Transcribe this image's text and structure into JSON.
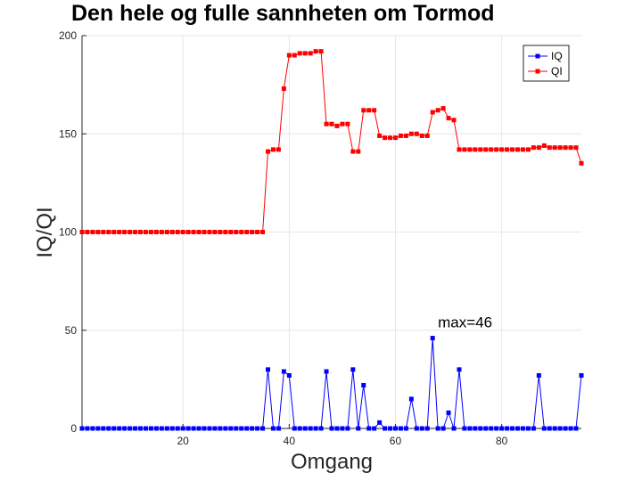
{
  "chart_data": {
    "type": "line",
    "title": "Den hele og fulle sannheten om Tormod",
    "xlabel": "Omgang",
    "ylabel": "IQ/QI",
    "xlim": [
      1,
      95
    ],
    "ylim": [
      0,
      200
    ],
    "xticks": [
      20,
      40,
      60,
      80
    ],
    "yticks": [
      0,
      50,
      100,
      150,
      200
    ],
    "grid": true,
    "legend_position": "top-right",
    "annotation": {
      "text": "max=46",
      "x": 68,
      "y": 46
    },
    "x": [
      1,
      2,
      3,
      4,
      5,
      6,
      7,
      8,
      9,
      10,
      11,
      12,
      13,
      14,
      15,
      16,
      17,
      18,
      19,
      20,
      21,
      22,
      23,
      24,
      25,
      26,
      27,
      28,
      29,
      30,
      31,
      32,
      33,
      34,
      35,
      36,
      37,
      38,
      39,
      40,
      41,
      42,
      43,
      44,
      45,
      46,
      47,
      48,
      49,
      50,
      51,
      52,
      53,
      54,
      55,
      56,
      57,
      58,
      59,
      60,
      61,
      62,
      63,
      64,
      65,
      66,
      67,
      68,
      69,
      70,
      71,
      72,
      73,
      74,
      75,
      76,
      77,
      78,
      79,
      80,
      81,
      82,
      83,
      84,
      85,
      86,
      87,
      88,
      89,
      90,
      91,
      92,
      93,
      94,
      95
    ],
    "series": [
      {
        "name": "IQ",
        "color": "#0000ff",
        "values": [
          0,
          0,
          0,
          0,
          0,
          0,
          0,
          0,
          0,
          0,
          0,
          0,
          0,
          0,
          0,
          0,
          0,
          0,
          0,
          0,
          0,
          0,
          0,
          0,
          0,
          0,
          0,
          0,
          0,
          0,
          0,
          0,
          0,
          0,
          0,
          30,
          0,
          0,
          29,
          27,
          0,
          0,
          0,
          0,
          0,
          0,
          29,
          0,
          0,
          0,
          0,
          30,
          0,
          22,
          0,
          0,
          3,
          0,
          0,
          0,
          0,
          0,
          15,
          0,
          0,
          0,
          46,
          0,
          0,
          8,
          0,
          30,
          0,
          0,
          0,
          0,
          0,
          0,
          0,
          0,
          0,
          0,
          0,
          0,
          0,
          0,
          27,
          0,
          0,
          0,
          0,
          0,
          0,
          0,
          27
        ]
      },
      {
        "name": "QI",
        "color": "#ff0000",
        "values": [
          100,
          100,
          100,
          100,
          100,
          100,
          100,
          100,
          100,
          100,
          100,
          100,
          100,
          100,
          100,
          100,
          100,
          100,
          100,
          100,
          100,
          100,
          100,
          100,
          100,
          100,
          100,
          100,
          100,
          100,
          100,
          100,
          100,
          100,
          100,
          141,
          142,
          142,
          173,
          190,
          190,
          191,
          191,
          191,
          192,
          192,
          155,
          155,
          154,
          155,
          155,
          141,
          141,
          162,
          162,
          162,
          149,
          148,
          148,
          148,
          149,
          149,
          150,
          150,
          149,
          149,
          161,
          162,
          163,
          158,
          157,
          142,
          142,
          142,
          142,
          142,
          142,
          142,
          142,
          142,
          142,
          142,
          142,
          142,
          142,
          143,
          143,
          144,
          143,
          143,
          143,
          143,
          143,
          143,
          135
        ]
      }
    ]
  }
}
